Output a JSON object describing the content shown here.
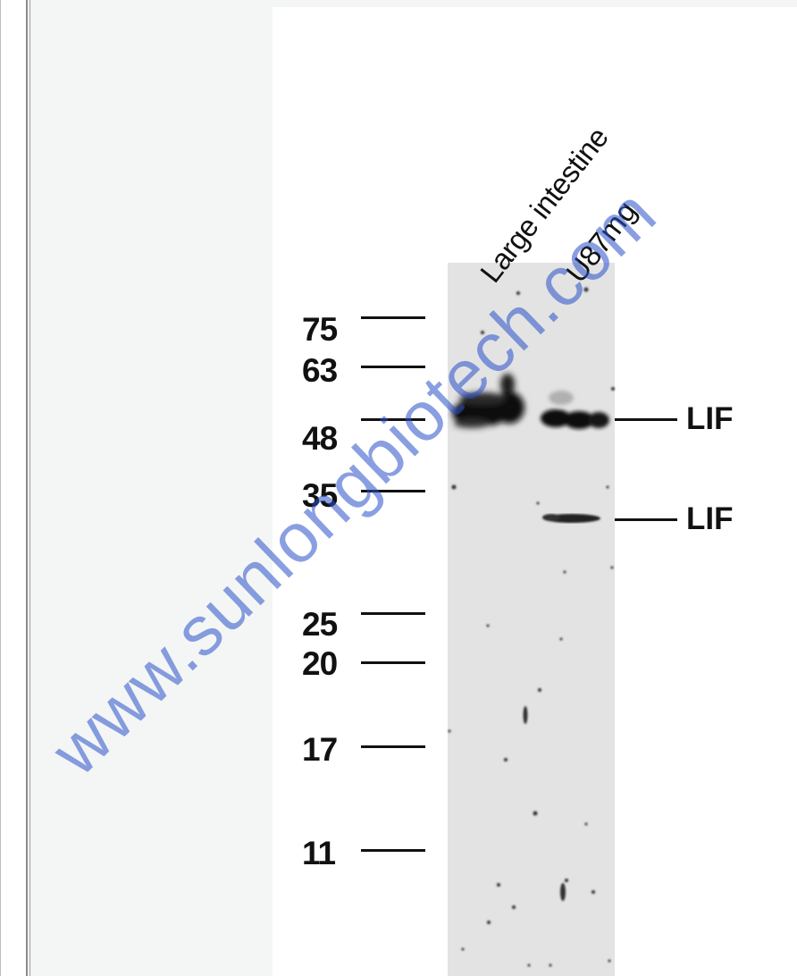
{
  "lanes": [
    {
      "label": "Large intestine"
    },
    {
      "label": "U87mg"
    }
  ],
  "markers": [
    {
      "value": "75"
    },
    {
      "value": "63"
    },
    {
      "value": "48"
    },
    {
      "value": "35"
    },
    {
      "value": "25"
    },
    {
      "value": "20"
    },
    {
      "value": "17"
    },
    {
      "value": "11"
    }
  ],
  "bands": [
    {
      "label": "LIF"
    },
    {
      "label": "LIF"
    }
  ],
  "watermark": {
    "text": "www.sunlongbiotech.com"
  },
  "colors": {
    "panel_bg": "#f4f6f5",
    "blot_bg": "#e3e3e3",
    "band": "#0d0d0d",
    "watermark": "#2850c8"
  }
}
